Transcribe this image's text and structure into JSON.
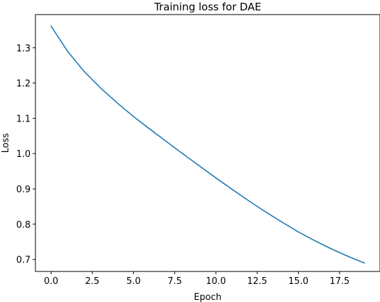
{
  "chart_data": {
    "type": "line",
    "title": "Training loss for DAE",
    "xlabel": "Epoch",
    "ylabel": "Loss",
    "xlim": [
      -0.95,
      19.95
    ],
    "ylim": [
      0.666,
      1.394
    ],
    "xticks": [
      0.0,
      2.5,
      5.0,
      7.5,
      10.0,
      12.5,
      15.0,
      17.5
    ],
    "xtick_labels": [
      "0.0",
      "2.5",
      "5.0",
      "7.5",
      "10.0",
      "12.5",
      "15.0",
      "17.5"
    ],
    "yticks": [
      0.7,
      0.8,
      0.9,
      1.0,
      1.1,
      1.2,
      1.3
    ],
    "ytick_labels": [
      "0.7",
      "0.8",
      "0.9",
      "1.0",
      "1.1",
      "1.2",
      "1.3"
    ],
    "grid": false,
    "legend": "none",
    "color": "#1f77b4",
    "series": [
      {
        "x": [
          0,
          1,
          2,
          3,
          4,
          5,
          6,
          7,
          8,
          9,
          10,
          11,
          12,
          13,
          14,
          15,
          16,
          17,
          18,
          19
        ],
        "values": [
          1.361,
          1.29,
          1.233,
          1.186,
          1.144,
          1.105,
          1.069,
          1.034,
          0.999,
          0.965,
          0.931,
          0.898,
          0.866,
          0.835,
          0.806,
          0.778,
          0.753,
          0.73,
          0.709,
          0.69
        ]
      }
    ]
  }
}
